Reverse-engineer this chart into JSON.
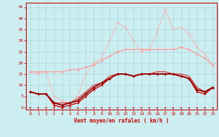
{
  "xlabel": "Vent moyen/en rafales ( km/h )",
  "bg_color": "#cceef0",
  "grid_color": "#aadddd",
  "spine_color": "#cc0000",
  "xlim": [
    -0.5,
    23.5
  ],
  "ylim": [
    -1,
    47
  ],
  "yticks": [
    0,
    5,
    10,
    15,
    20,
    25,
    30,
    35,
    40,
    45
  ],
  "xticks": [
    0,
    1,
    2,
    3,
    4,
    5,
    6,
    7,
    8,
    9,
    10,
    11,
    12,
    13,
    14,
    15,
    16,
    17,
    18,
    19,
    20,
    21,
    22,
    23
  ],
  "series": [
    {
      "x": [
        0,
        1,
        2,
        3,
        4,
        5,
        6,
        7,
        8,
        9,
        10,
        11,
        12,
        13,
        14,
        15,
        16,
        17,
        18,
        19,
        20,
        21,
        22,
        23
      ],
      "y": [
        7,
        6,
        6,
        1,
        0,
        1,
        2,
        5,
        8,
        10,
        13,
        15,
        15,
        14,
        15,
        15,
        15,
        15,
        15,
        14,
        13,
        7,
        6,
        9
      ],
      "color": "#cc0000",
      "lw": 1.0,
      "marker": "D",
      "ms": 1.8,
      "alpha": 1.0,
      "zorder": 5
    },
    {
      "x": [
        0,
        1,
        2,
        3,
        4,
        5,
        6,
        7,
        8,
        9,
        10,
        11,
        12,
        13,
        14,
        15,
        16,
        17,
        18,
        19,
        20,
        21,
        22,
        23
      ],
      "y": [
        7,
        6,
        6,
        2,
        2,
        2,
        4,
        7,
        10,
        11,
        14,
        15,
        15,
        14,
        15,
        15,
        16,
        16,
        15,
        15,
        14,
        9,
        7,
        9
      ],
      "color": "#dd3333",
      "lw": 0.9,
      "marker": null,
      "ms": 0,
      "alpha": 1.0,
      "zorder": 4
    },
    {
      "x": [
        0,
        1,
        2,
        3,
        4,
        5,
        6,
        7,
        8,
        9,
        10,
        11,
        12,
        13,
        14,
        15,
        16,
        17,
        18,
        19,
        20,
        21,
        22,
        23
      ],
      "y": [
        16,
        16,
        16,
        16,
        16,
        17,
        17,
        18,
        19,
        21,
        23,
        25,
        26,
        26,
        26,
        26,
        26,
        26,
        26,
        27,
        26,
        24,
        22,
        19
      ],
      "color": "#ff9999",
      "lw": 1.0,
      "marker": "D",
      "ms": 2.0,
      "alpha": 0.85,
      "zorder": 3
    },
    {
      "x": [
        0,
        1,
        2,
        3,
        4,
        5,
        6,
        7,
        8,
        9,
        10,
        11,
        12,
        13,
        14,
        15,
        16,
        17,
        18,
        19,
        20,
        21,
        22,
        23
      ],
      "y": [
        16,
        15,
        16,
        5,
        3,
        2,
        5,
        15,
        20,
        22,
        30,
        38,
        36,
        30,
        25,
        26,
        34,
        44,
        35,
        36,
        33,
        27,
        24,
        19
      ],
      "color": "#ffaaaa",
      "lw": 0.8,
      "marker": "D",
      "ms": 1.8,
      "alpha": 0.75,
      "zorder": 2
    },
    {
      "x": [
        0,
        1,
        2,
        3,
        4,
        5,
        6,
        7,
        8,
        9,
        10,
        11,
        12,
        13,
        14,
        15,
        16,
        17,
        18,
        19,
        20,
        21,
        22,
        23
      ],
      "y": [
        7,
        6,
        6,
        2,
        1,
        2,
        3,
        6,
        9,
        11,
        13,
        15,
        15,
        14,
        15,
        15,
        15,
        15,
        15,
        14,
        13,
        8,
        7,
        9
      ],
      "color": "#990000",
      "lw": 1.4,
      "marker": "D",
      "ms": 2.2,
      "alpha": 1.0,
      "zorder": 6
    }
  ],
  "arrows_x": [
    0,
    1,
    2,
    3,
    4,
    5,
    6,
    7,
    8,
    9,
    10,
    11,
    12,
    13,
    14,
    15,
    16,
    17,
    18,
    19,
    20,
    21,
    22,
    23
  ],
  "arrow_color": "#cc0000"
}
